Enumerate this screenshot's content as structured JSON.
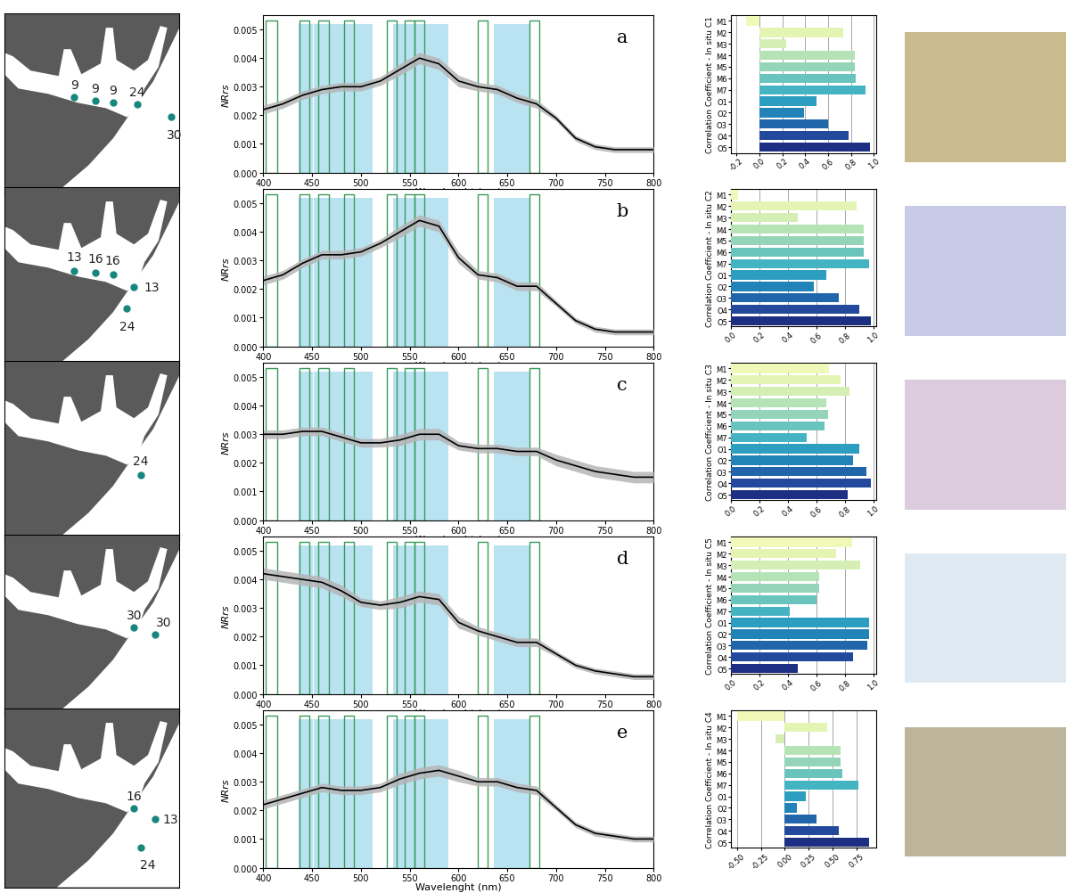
{
  "chart_data": [
    {
      "type": "line",
      "annotations": [
        "a"
      ],
      "xlabel": "Wavelenght (nm)",
      "ylabel": "NRrs",
      "color": "#000000",
      "x": [
        400,
        420,
        440,
        460,
        480,
        500,
        520,
        540,
        560,
        580,
        600,
        620,
        640,
        660,
        680,
        700,
        720,
        740,
        760,
        780,
        800
      ],
      "values": [
        0.0022,
        0.0024,
        0.0027,
        0.0029,
        0.003,
        0.003,
        0.0032,
        0.0036,
        0.004,
        0.0038,
        0.0032,
        0.003,
        0.0029,
        0.0026,
        0.0024,
        0.0019,
        0.0012,
        0.0009,
        0.0008,
        0.0008,
        0.0008
      ],
      "error": [
        0.00015,
        0.00015,
        0.00015,
        0.00015,
        0.00015,
        0.00015,
        0.00015,
        0.0002,
        0.0002,
        0.0002,
        0.0002,
        0.00015,
        0.00015,
        0.00015,
        0.00015,
        0.0001,
        0.0001,
        0.0001,
        0.0001,
        0.0001,
        0.0001
      ],
      "bands_outline": [
        [
          402,
          414
        ],
        [
          437,
          447
        ],
        [
          456,
          467
        ],
        [
          483,
          493
        ],
        [
          527,
          537
        ],
        [
          545,
          555
        ],
        [
          555,
          565
        ],
        [
          620,
          630
        ],
        [
          673,
          683
        ]
      ],
      "bands_filled": [
        [
          436,
          451
        ],
        [
          452,
          512
        ],
        [
          533,
          590
        ],
        [
          636,
          673
        ]
      ],
      "xlim": [
        400,
        800
      ],
      "xticks": [
        400,
        450,
        500,
        550,
        600,
        650,
        700,
        750,
        800
      ],
      "ylim": [
        0,
        0.0055
      ],
      "yticks": [
        {
          "value": 0,
          "label": "0.000"
        },
        0.001,
        0.002,
        0.003,
        0.004,
        0.005
      ]
    },
    {
      "type": "bar",
      "orientation": "horizontal",
      "ylabel": "Correlation Coefficient - In situ C1",
      "grid": true,
      "categories": [
        "M1",
        "M2",
        "M3",
        "M4",
        "M5",
        "M6",
        "M7",
        "O1",
        "O2",
        "O3",
        "O4",
        "O5"
      ],
      "values": [
        -0.12,
        0.73,
        0.23,
        0.83,
        0.83,
        0.84,
        0.93,
        0.5,
        0.39,
        0.6,
        0.78,
        0.97
      ],
      "colors": [
        "#f0f9b8",
        "#e4f4b2",
        "#d5eeb3",
        "#b6e3b6",
        "#94d5b9",
        "#6ac4be",
        "#45b4c2",
        "#2c9ec0",
        "#2183b8",
        "#2165ab",
        "#23499c",
        "#1d2f83"
      ],
      "xlim": [
        -0.25,
        1.02
      ],
      "xticks": [
        -0.2,
        {
          "value": 0,
          "label": "0.0"
        },
        0.2,
        0.4,
        0.6,
        0.8,
        {
          "value": 1,
          "label": "1.0"
        }
      ]
    },
    {
      "type": "line",
      "annotations": [
        "b"
      ],
      "xlabel": "Wavelenght (nm)",
      "ylabel": "NRrs",
      "color": "#000000",
      "x": [
        400,
        420,
        440,
        460,
        480,
        500,
        520,
        540,
        560,
        580,
        600,
        620,
        640,
        660,
        680,
        700,
        720,
        740,
        760,
        780,
        800
      ],
      "values": [
        0.0023,
        0.0025,
        0.0029,
        0.0032,
        0.0032,
        0.0033,
        0.0036,
        0.004,
        0.0044,
        0.0042,
        0.0031,
        0.0025,
        0.0024,
        0.0021,
        0.0021,
        0.0015,
        0.0009,
        0.0006,
        0.0005,
        0.0005,
        0.0005
      ],
      "error": [
        0.00015,
        0.00015,
        0.00015,
        0.00015,
        0.00015,
        0.00015,
        0.00015,
        0.0002,
        0.0002,
        0.0002,
        0.0002,
        0.00015,
        0.00015,
        0.00015,
        0.00015,
        0.0001,
        0.0001,
        0.0001,
        0.0001,
        0.0001,
        0.0001
      ],
      "bands_outline": [
        [
          402,
          414
        ],
        [
          437,
          447
        ],
        [
          456,
          467
        ],
        [
          483,
          493
        ],
        [
          527,
          537
        ],
        [
          545,
          555
        ],
        [
          555,
          565
        ],
        [
          620,
          630
        ],
        [
          673,
          683
        ]
      ],
      "bands_filled": [
        [
          436,
          451
        ],
        [
          452,
          512
        ],
        [
          533,
          590
        ],
        [
          636,
          673
        ]
      ],
      "xlim": [
        400,
        800
      ],
      "xticks": [
        400,
        450,
        500,
        550,
        600,
        650,
        700,
        750,
        800
      ],
      "ylim": [
        0,
        0.0055
      ],
      "yticks": [
        {
          "value": 0,
          "label": "0.000"
        },
        0.001,
        0.002,
        0.003,
        0.004,
        0.005
      ]
    },
    {
      "type": "bar",
      "orientation": "horizontal",
      "ylabel": "Correlation Coefficient - In situ C2",
      "grid": true,
      "categories": [
        "M1",
        "M2",
        "M3",
        "M4",
        "M5",
        "M6",
        "M7",
        "O1",
        "O2",
        "O3",
        "O4",
        "O5"
      ],
      "values": [
        0.05,
        0.88,
        0.47,
        0.93,
        0.93,
        0.93,
        0.97,
        0.67,
        0.58,
        0.76,
        0.9,
        0.98
      ],
      "colors": [
        "#f0f9b8",
        "#e4f4b2",
        "#d5eeb3",
        "#b6e3b6",
        "#94d5b9",
        "#6ac4be",
        "#45b4c2",
        "#2c9ec0",
        "#2183b8",
        "#2165ab",
        "#23499c",
        "#1d2f83"
      ],
      "xlim": [
        0,
        1.02
      ],
      "xticks": [
        {
          "value": 0,
          "label": "0.0"
        },
        0.2,
        0.4,
        0.6,
        0.8,
        {
          "value": 1,
          "label": "1.0"
        }
      ]
    },
    {
      "type": "line",
      "annotations": [
        "c"
      ],
      "xlabel": "Wavelenght (nm)",
      "ylabel": "NRrs",
      "color": "#000000",
      "x": [
        400,
        420,
        440,
        460,
        480,
        500,
        520,
        540,
        560,
        580,
        600,
        620,
        640,
        660,
        680,
        700,
        720,
        740,
        760,
        780,
        800
      ],
      "values": [
        0.003,
        0.003,
        0.0031,
        0.0031,
        0.0029,
        0.0027,
        0.0027,
        0.0028,
        0.003,
        0.003,
        0.0026,
        0.0025,
        0.0025,
        0.0024,
        0.0024,
        0.0021,
        0.0019,
        0.0017,
        0.0016,
        0.0015,
        0.0015
      ],
      "error": [
        0.00015,
        0.00015,
        0.00015,
        0.00015,
        0.00015,
        0.00015,
        0.00015,
        0.0002,
        0.0002,
        0.0002,
        0.00015,
        0.00015,
        0.00015,
        0.00015,
        0.00015,
        0.0002,
        0.0002,
        0.0002,
        0.0002,
        0.0002,
        0.0002
      ],
      "bands_outline": [
        [
          402,
          414
        ],
        [
          437,
          447
        ],
        [
          456,
          467
        ],
        [
          483,
          493
        ],
        [
          527,
          537
        ],
        [
          545,
          555
        ],
        [
          555,
          565
        ],
        [
          620,
          630
        ],
        [
          673,
          683
        ]
      ],
      "bands_filled": [
        [
          436,
          451
        ],
        [
          452,
          512
        ],
        [
          533,
          590
        ],
        [
          636,
          673
        ]
      ],
      "xlim": [
        400,
        800
      ],
      "xticks": [
        400,
        450,
        500,
        550,
        600,
        650,
        700,
        750,
        800
      ],
      "ylim": [
        0,
        0.0055
      ],
      "yticks": [
        {
          "value": 0,
          "label": "0.000"
        },
        0.001,
        0.002,
        0.003,
        0.004,
        0.005
      ]
    },
    {
      "type": "bar",
      "orientation": "horizontal",
      "ylabel": "Correlation Coefficient - In situ C3",
      "grid": true,
      "categories": [
        "M1",
        "M2",
        "M3",
        "M4",
        "M5",
        "M6",
        "M7",
        "O1",
        "O2",
        "O3",
        "O4",
        "O5"
      ],
      "values": [
        0.69,
        0.77,
        0.83,
        0.67,
        0.68,
        0.66,
        0.53,
        0.9,
        0.86,
        0.95,
        0.98,
        0.82
      ],
      "colors": [
        "#f0f9b8",
        "#e4f4b2",
        "#d5eeb3",
        "#b6e3b6",
        "#94d5b9",
        "#6ac4be",
        "#45b4c2",
        "#2c9ec0",
        "#2183b8",
        "#2165ab",
        "#23499c",
        "#1d2f83"
      ],
      "xlim": [
        0,
        1.02
      ],
      "xticks": [
        {
          "value": 0,
          "label": "0.0"
        },
        0.2,
        0.4,
        0.6,
        0.8,
        {
          "value": 1,
          "label": "1.0"
        }
      ]
    },
    {
      "type": "line",
      "annotations": [
        "d"
      ],
      "xlabel": "Wavelenght (nm)",
      "ylabel": "NRrs",
      "color": "#000000",
      "x": [
        400,
        420,
        440,
        460,
        480,
        500,
        520,
        540,
        560,
        580,
        600,
        620,
        640,
        660,
        680,
        700,
        720,
        740,
        760,
        780,
        800
      ],
      "values": [
        0.0042,
        0.0041,
        0.004,
        0.0039,
        0.0036,
        0.0032,
        0.0031,
        0.0032,
        0.0034,
        0.0033,
        0.0025,
        0.0022,
        0.002,
        0.0018,
        0.0018,
        0.0014,
        0.001,
        0.0008,
        0.0007,
        0.0006,
        0.0006
      ],
      "error": [
        0.0002,
        0.0002,
        0.0002,
        0.0002,
        0.0002,
        0.00015,
        0.00015,
        0.0002,
        0.0002,
        0.0002,
        0.0002,
        0.00015,
        0.00015,
        0.00015,
        0.00015,
        0.0001,
        0.0001,
        0.0001,
        0.0001,
        0.0001,
        0.0001
      ],
      "bands_outline": [
        [
          402,
          414
        ],
        [
          437,
          447
        ],
        [
          456,
          467
        ],
        [
          483,
          493
        ],
        [
          527,
          537
        ],
        [
          545,
          555
        ],
        [
          555,
          565
        ],
        [
          620,
          630
        ],
        [
          673,
          683
        ]
      ],
      "bands_filled": [
        [
          436,
          451
        ],
        [
          452,
          512
        ],
        [
          533,
          590
        ],
        [
          636,
          673
        ]
      ],
      "xlim": [
        400,
        800
      ],
      "xticks": [
        400,
        450,
        500,
        550,
        600,
        650,
        700,
        750,
        800
      ],
      "ylim": [
        0,
        0.0055
      ],
      "yticks": [
        {
          "value": 0,
          "label": "0.000"
        },
        0.001,
        0.002,
        0.003,
        0.004,
        0.005
      ]
    },
    {
      "type": "bar",
      "orientation": "horizontal",
      "ylabel": "Correlation Coefficient - In situ C5",
      "grid": true,
      "categories": [
        "M1",
        "M2",
        "M3",
        "M4",
        "M5",
        "M6",
        "M7",
        "O1",
        "O2",
        "O3",
        "O4",
        "O5"
      ],
      "values": [
        0.85,
        0.74,
        0.91,
        0.62,
        0.62,
        0.6,
        0.41,
        0.97,
        0.97,
        0.96,
        0.86,
        0.47
      ],
      "colors": [
        "#f0f9b8",
        "#e4f4b2",
        "#d5eeb3",
        "#b6e3b6",
        "#94d5b9",
        "#6ac4be",
        "#45b4c2",
        "#2c9ec0",
        "#2183b8",
        "#2165ab",
        "#23499c",
        "#1d2f83"
      ],
      "xlim": [
        0,
        1.02
      ],
      "xticks": [
        {
          "value": 0,
          "label": "0.0"
        },
        0.2,
        0.4,
        0.6,
        0.8,
        {
          "value": 1,
          "label": "1.0"
        }
      ]
    },
    {
      "type": "line",
      "annotations": [
        "e"
      ],
      "xlabel": "Wavelenght (nm)",
      "ylabel": "NRrs",
      "color": "#000000",
      "x": [
        400,
        420,
        440,
        460,
        480,
        500,
        520,
        540,
        560,
        580,
        600,
        620,
        640,
        660,
        680,
        700,
        720,
        740,
        760,
        780,
        800
      ],
      "values": [
        0.0022,
        0.0024,
        0.0026,
        0.0028,
        0.0027,
        0.0027,
        0.0028,
        0.0031,
        0.0033,
        0.0034,
        0.0032,
        0.003,
        0.003,
        0.0028,
        0.0027,
        0.0021,
        0.0015,
        0.0012,
        0.0011,
        0.001,
        0.001
      ],
      "error": [
        0.00015,
        0.00015,
        0.00015,
        0.00015,
        0.00015,
        0.00015,
        0.00015,
        0.0002,
        0.0002,
        0.0002,
        0.0002,
        0.00015,
        0.00015,
        0.00015,
        0.00015,
        0.0001,
        0.0001,
        0.0001,
        0.0001,
        0.0001,
        0.0001
      ],
      "bands_outline": [
        [
          402,
          414
        ],
        [
          437,
          447
        ],
        [
          456,
          467
        ],
        [
          483,
          493
        ],
        [
          527,
          537
        ],
        [
          545,
          555
        ],
        [
          555,
          565
        ],
        [
          620,
          630
        ],
        [
          673,
          683
        ]
      ],
      "bands_filled": [
        [
          436,
          451
        ],
        [
          452,
          512
        ],
        [
          533,
          590
        ],
        [
          636,
          673
        ]
      ],
      "xlim": [
        400,
        800
      ],
      "xticks": [
        400,
        450,
        500,
        550,
        600,
        650,
        700,
        750,
        800
      ],
      "ylim": [
        0,
        0.0055
      ],
      "yticks": [
        {
          "value": 0,
          "label": "0.000"
        },
        0.001,
        0.002,
        0.003,
        0.004,
        0.005
      ]
    },
    {
      "type": "bar",
      "orientation": "horizontal",
      "ylabel": "Correlation Coefficient - In situ C4",
      "grid": true,
      "categories": [
        "M1",
        "M2",
        "M3",
        "M4",
        "M5",
        "M6",
        "M7",
        "O1",
        "O2",
        "O3",
        "O4",
        "O5"
      ],
      "values": [
        -0.5,
        0.44,
        -0.1,
        0.58,
        0.58,
        0.6,
        0.77,
        0.22,
        0.13,
        0.33,
        0.56,
        0.88
      ],
      "colors": [
        "#f0f9b8",
        "#e4f4b2",
        "#d5eeb3",
        "#b6e3b6",
        "#94d5b9",
        "#6ac4be",
        "#45b4c2",
        "#2c9ec0",
        "#2183b8",
        "#2165ab",
        "#23499c",
        "#1d2f83"
      ],
      "xlim": [
        -0.56,
        0.95
      ],
      "xticks": [
        {
          "value": -0.5,
          "label": "-0.50"
        },
        -0.25,
        {
          "value": 0,
          "label": "0.00"
        },
        0.25,
        {
          "value": 0.5,
          "label": "0.50"
        },
        0.75
      ]
    }
  ],
  "maps": [
    {
      "labels": [
        "9",
        "9",
        "9",
        "24",
        "30"
      ]
    },
    {
      "labels": [
        "13",
        "16",
        "16",
        "13",
        "24"
      ]
    },
    {
      "labels": [
        "24"
      ]
    },
    {
      "labels": [
        "30",
        "30"
      ]
    },
    {
      "labels": [
        "16",
        "13",
        "24"
      ]
    }
  ]
}
